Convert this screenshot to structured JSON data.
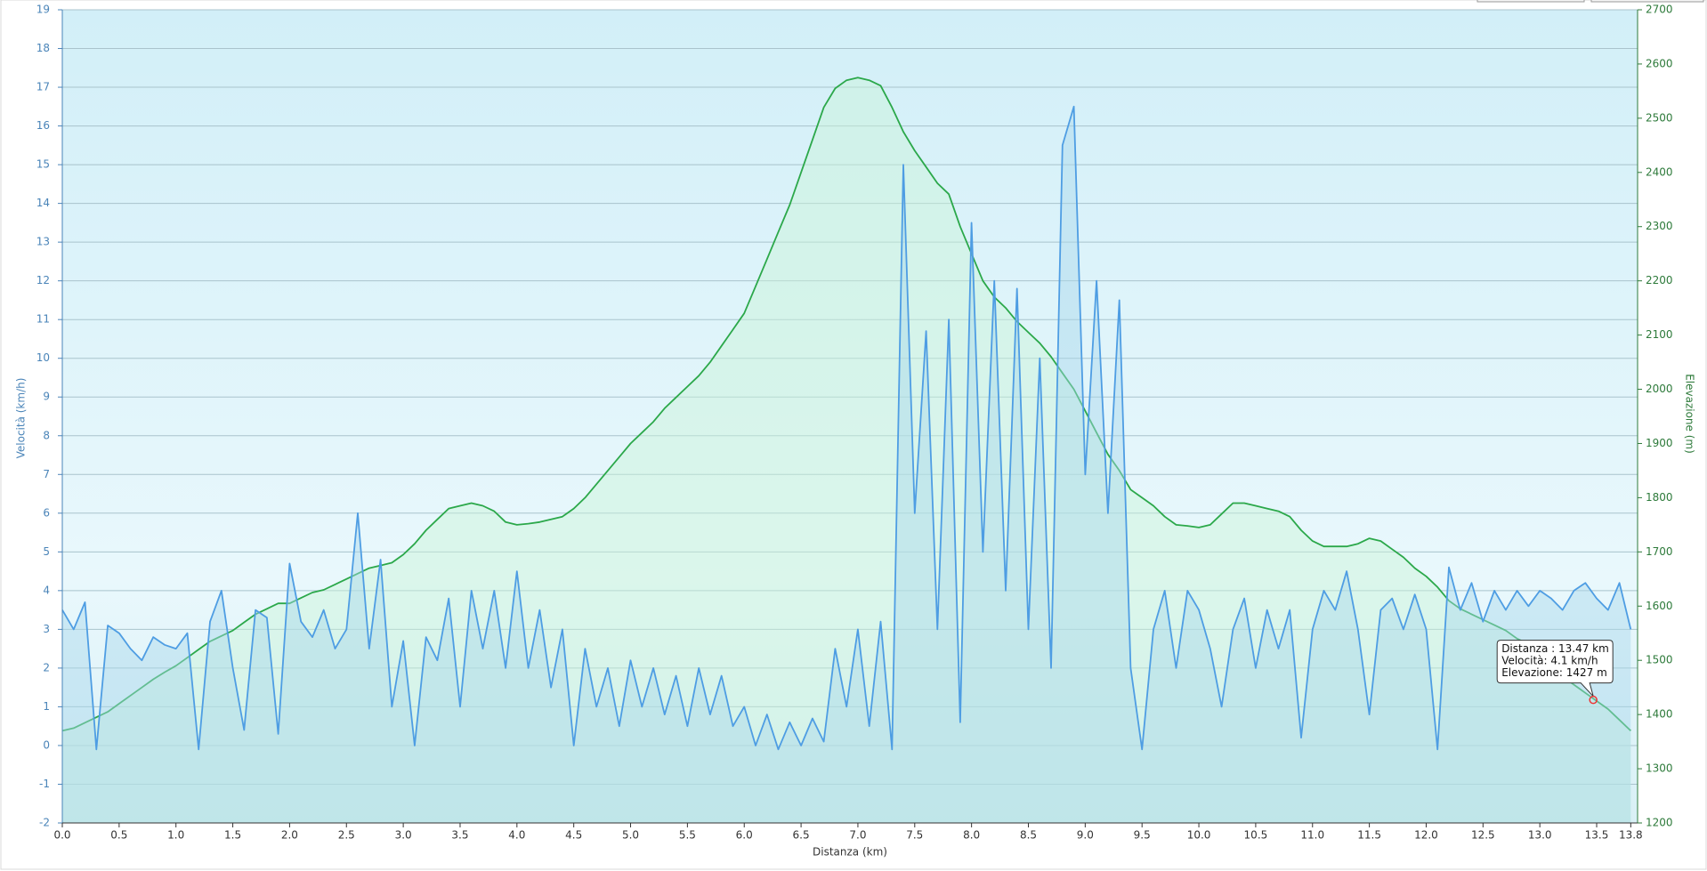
{
  "chart_data": {
    "type": "line",
    "x_label": "Distanza  (km)",
    "y_label": "Velocità (km/h)",
    "y2_label": "Elevazione (m)",
    "xlim": [
      0,
      13.86
    ],
    "xticks": [
      {
        "value": 0,
        "label": "0.0"
      },
      0.5,
      {
        "value": 1,
        "label": "1.0"
      },
      1.5,
      {
        "value": 2,
        "label": "2.0"
      },
      2.5,
      {
        "value": 3,
        "label": "3.0"
      },
      3.5,
      {
        "value": 4,
        "label": "4.0"
      },
      4.5,
      {
        "value": 5,
        "label": "5.0"
      },
      5.5,
      {
        "value": 6,
        "label": "6.0"
      },
      6.5,
      {
        "value": 7,
        "label": "7.0"
      },
      7.5,
      {
        "value": 8,
        "label": "8.0"
      },
      8.5,
      {
        "value": 9,
        "label": "9.0"
      },
      9.5,
      {
        "value": 10,
        "label": "10.0"
      },
      10.5,
      {
        "value": 11,
        "label": "11.0"
      },
      11.5,
      {
        "value": 12,
        "label": "12.0"
      },
      12.5,
      {
        "value": 13,
        "label": "13.0"
      },
      13.5,
      13.8
    ],
    "ylim": [
      -2,
      19
    ],
    "yticks": [
      -2,
      -1,
      0,
      1,
      2,
      3,
      4,
      5,
      6,
      7,
      8,
      9,
      10,
      11,
      12,
      13,
      14,
      15,
      16,
      17,
      18,
      19
    ],
    "y2lim": [
      1200,
      2700
    ],
    "y2ticks": [
      1200,
      1300,
      1400,
      1500,
      1600,
      1700,
      1800,
      1900,
      2000,
      2100,
      2200,
      2300,
      2400,
      2500,
      2600,
      2700
    ],
    "grid": true,
    "x": [
      0.0,
      0.1,
      0.2,
      0.3,
      0.4,
      0.5,
      0.6,
      0.7,
      0.8,
      0.9,
      1.0,
      1.1,
      1.2,
      1.3,
      1.4,
      1.5,
      1.6,
      1.7,
      1.8,
      1.9,
      2.0,
      2.1,
      2.2,
      2.3,
      2.4,
      2.5,
      2.6,
      2.7,
      2.8,
      2.9,
      3.0,
      3.1,
      3.2,
      3.3,
      3.4,
      3.5,
      3.6,
      3.7,
      3.8,
      3.9,
      4.0,
      4.1,
      4.2,
      4.3,
      4.4,
      4.5,
      4.6,
      4.7,
      4.8,
      4.9,
      5.0,
      5.1,
      5.2,
      5.3,
      5.4,
      5.5,
      5.6,
      5.7,
      5.8,
      5.9,
      6.0,
      6.1,
      6.2,
      6.3,
      6.4,
      6.5,
      6.6,
      6.7,
      6.8,
      6.9,
      7.0,
      7.1,
      7.2,
      7.3,
      7.4,
      7.5,
      7.6,
      7.7,
      7.8,
      7.9,
      8.0,
      8.1,
      8.2,
      8.3,
      8.4,
      8.5,
      8.6,
      8.7,
      8.8,
      8.9,
      9.0,
      9.1,
      9.2,
      9.3,
      9.4,
      9.5,
      9.6,
      9.7,
      9.8,
      9.9,
      10.0,
      10.1,
      10.2,
      10.3,
      10.4,
      10.5,
      10.6,
      10.7,
      10.8,
      10.9,
      11.0,
      11.1,
      11.2,
      11.3,
      11.4,
      11.5,
      11.6,
      11.7,
      11.8,
      11.9,
      12.0,
      12.1,
      12.2,
      12.3,
      12.4,
      12.5,
      12.6,
      12.7,
      12.8,
      12.9,
      13.0,
      13.1,
      13.2,
      13.3,
      13.4,
      13.5,
      13.6,
      13.7,
      13.8
    ],
    "series": [
      {
        "color": "#2ba84a",
        "axis": "y2",
        "fill": "#c9f3d8",
        "values": [
          1370,
          1375,
          1385,
          1395,
          1405,
          1420,
          1435,
          1450,
          1465,
          1478,
          1490,
          1505,
          1520,
          1535,
          1545,
          1555,
          1570,
          1585,
          1595,
          1605,
          1605,
          1615,
          1625,
          1630,
          1640,
          1650,
          1660,
          1670,
          1675,
          1680,
          1695,
          1715,
          1740,
          1760,
          1780,
          1785,
          1790,
          1785,
          1775,
          1755,
          1750,
          1752,
          1755,
          1760,
          1765,
          1780,
          1800,
          1825,
          1850,
          1875,
          1900,
          1920,
          1940,
          1965,
          1985,
          2005,
          2025,
          2050,
          2080,
          2110,
          2140,
          2190,
          2240,
          2290,
          2340,
          2400,
          2460,
          2520,
          2555,
          2570,
          2575,
          2570,
          2560,
          2520,
          2475,
          2440,
          2410,
          2380,
          2360,
          2300,
          2250,
          2200,
          2170,
          2150,
          2125,
          2105,
          2085,
          2060,
          2030,
          2000,
          1960,
          1920,
          1880,
          1850,
          1815,
          1800,
          1785,
          1765,
          1750,
          1748,
          1745,
          1750,
          1770,
          1790,
          1790,
          1785,
          1780,
          1775,
          1765,
          1740,
          1720,
          1710,
          1710,
          1710,
          1715,
          1725,
          1720,
          1705,
          1690,
          1670,
          1655,
          1635,
          1610,
          1595,
          1585,
          1575,
          1565,
          1555,
          1540,
          1530,
          1515,
          1490,
          1470,
          1455,
          1440,
          1425,
          1410,
          1390,
          1370
        ]
      },
      {
        "color": "#4e9de3",
        "axis": "y",
        "fill": "#a9d8ec",
        "values": [
          3.5,
          3.0,
          3.7,
          -0.1,
          3.1,
          2.9,
          2.5,
          2.2,
          2.8,
          2.6,
          2.5,
          2.9,
          -0.1,
          3.2,
          4.0,
          2.0,
          0.4,
          3.5,
          3.3,
          0.3,
          4.7,
          3.2,
          2.8,
          3.5,
          2.5,
          3.0,
          6.0,
          2.5,
          4.8,
          1.0,
          2.7,
          0.0,
          2.8,
          2.2,
          3.8,
          1.0,
          4.0,
          2.5,
          4.0,
          2.0,
          4.5,
          2.0,
          3.5,
          1.5,
          3.0,
          0.0,
          2.5,
          1.0,
          2.0,
          0.5,
          2.2,
          1.0,
          2.0,
          0.8,
          1.8,
          0.5,
          2.0,
          0.8,
          1.8,
          0.5,
          1.0,
          0.0,
          0.8,
          -0.1,
          0.6,
          0.0,
          0.7,
          0.1,
          2.5,
          1.0,
          3.0,
          0.5,
          3.2,
          -0.1,
          15.0,
          6.0,
          10.7,
          3.0,
          11.0,
          0.6,
          13.5,
          5.0,
          12.0,
          4.0,
          11.8,
          3.0,
          10.0,
          2.0,
          15.5,
          16.5,
          7.0,
          12.0,
          6.0,
          11.5,
          2.0,
          -0.1,
          3.0,
          4.0,
          2.0,
          4.0,
          3.5,
          2.5,
          1.0,
          3.0,
          3.8,
          2.0,
          3.5,
          2.5,
          3.5,
          0.2,
          3.0,
          4.0,
          3.5,
          4.5,
          3.0,
          0.8,
          3.5,
          3.8,
          3.0,
          3.9,
          3.0,
          -0.1,
          4.6,
          3.5,
          4.2,
          3.2,
          4.0,
          3.5,
          4.0,
          3.6,
          4.0,
          3.8,
          3.5,
          4.0,
          4.2,
          3.8,
          3.5,
          4.2,
          3.0
        ]
      }
    ],
    "tooltip": {
      "x": 13.47,
      "y2": 1427,
      "lines": [
        "Distanza : 13.47 km",
        "Velocità: 4.1 km/h",
        "Elevazione: 1427 m"
      ]
    }
  }
}
